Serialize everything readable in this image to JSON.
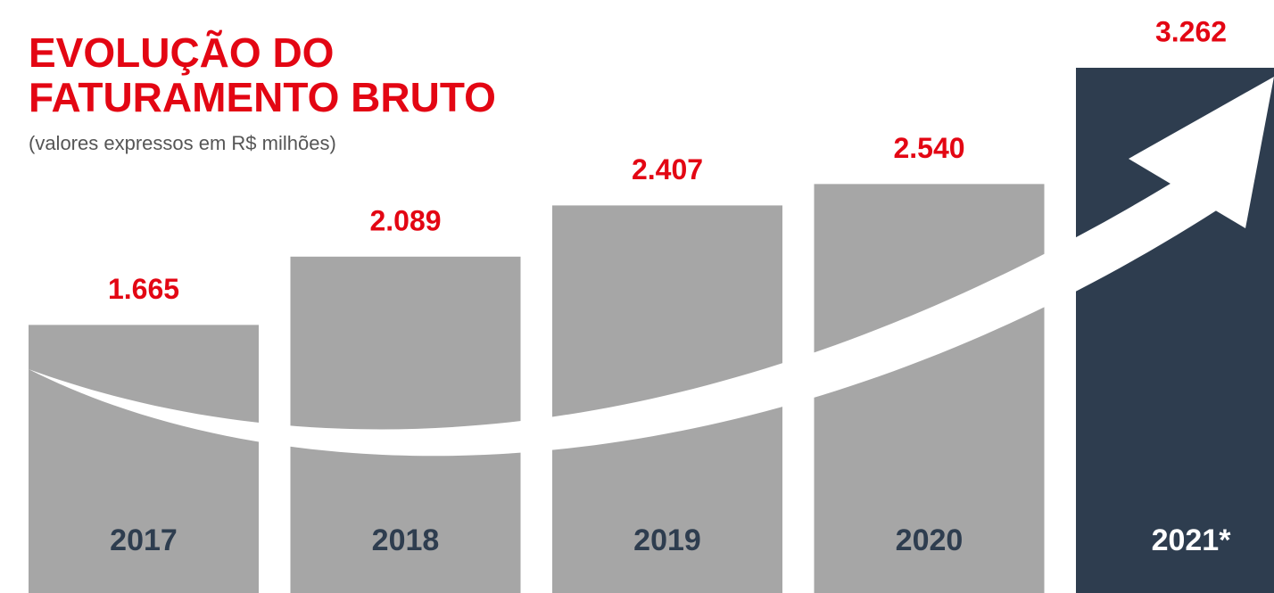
{
  "chart_data": {
    "type": "bar",
    "title": "EVOLUÇÃO DO FATURAMENTO BRUTO",
    "subtitle": "(valores expressos em R$ milhões)",
    "categories": [
      "2017",
      "2018",
      "2019",
      "2020",
      "2021*"
    ],
    "values": [
      1665,
      2089,
      2407,
      2540,
      3262
    ],
    "value_labels": [
      "1.665",
      "2.089",
      "2.407",
      "2.540",
      "3.262"
    ],
    "colors": [
      "#a6a6a6",
      "#a6a6a6",
      "#a6a6a6",
      "#a6a6a6",
      "#2e3d4f"
    ],
    "category_label_colors": [
      "#2e3d4f",
      "#2e3d4f",
      "#2e3d4f",
      "#2e3d4f",
      "#ffffff"
    ],
    "value_label_color": "#e30613"
  }
}
